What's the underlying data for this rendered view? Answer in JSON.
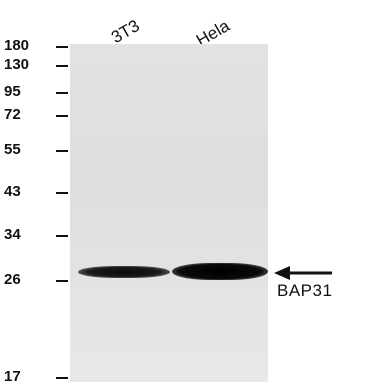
{
  "lanes": [
    "3T3",
    "Hela"
  ],
  "markers": [
    "180",
    "130",
    "95",
    "72",
    "55",
    "43",
    "34",
    "26",
    "17"
  ],
  "target": {
    "label": "BAP31",
    "arrow_icon": "left-arrow-icon"
  },
  "colors": {
    "membrane": "#e0e0e0",
    "band": "#0a0a0a",
    "text": "#111111"
  }
}
